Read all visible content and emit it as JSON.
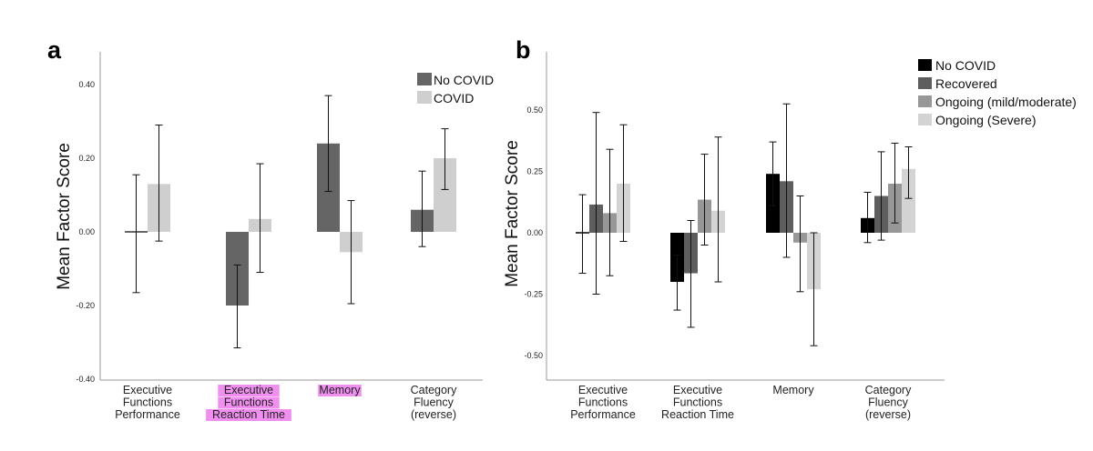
{
  "chart_data": [
    {
      "panel_label": "a",
      "type": "bar",
      "ylabel": "Mean Factor Score",
      "ylim": [
        -0.4,
        0.5
      ],
      "yticks": [
        "0.40",
        "0.20",
        "0.00",
        "-0.20",
        "-0.40"
      ],
      "ytick_values": [
        0.4,
        0.2,
        0.0,
        -0.2,
        -0.4
      ],
      "categories": [
        [
          "Executive",
          "Functions",
          "Performance"
        ],
        [
          "Executive",
          "Functions",
          "Reaction Time"
        ],
        [
          "Memory"
        ],
        [
          "Category",
          "Fluency",
          "(reverse)"
        ]
      ],
      "highlighted_categories": [
        1,
        2
      ],
      "highlight_color": "#f08ff0",
      "legend_position": "top-right",
      "series": [
        {
          "name": "No COVID",
          "color": "#656565",
          "values": [
            0.0,
            -0.2,
            0.24,
            0.06
          ],
          "err_low": [
            -0.165,
            -0.315,
            0.11,
            -0.04
          ],
          "err_high": [
            0.155,
            -0.09,
            0.37,
            0.165
          ]
        },
        {
          "name": "COVID",
          "color": "#cfcfcf",
          "values": [
            0.13,
            0.035,
            -0.055,
            0.2
          ],
          "err_low": [
            -0.025,
            -0.11,
            -0.195,
            0.115
          ],
          "err_high": [
            0.29,
            0.185,
            0.085,
            0.28
          ]
        }
      ]
    },
    {
      "panel_label": "b",
      "type": "bar",
      "ylabel": "Mean Factor Score",
      "ylim": [
        -0.55,
        0.65
      ],
      "yticks": [
        "0.50",
        "0.25",
        "0.00",
        "-0.25",
        "-0.50"
      ],
      "ytick_values": [
        0.5,
        0.25,
        0.0,
        -0.25,
        -0.5
      ],
      "categories": [
        [
          "Executive",
          "Functions",
          "Performance"
        ],
        [
          "Executive",
          "Functions",
          "Reaction Time"
        ],
        [
          "Memory"
        ],
        [
          "Category",
          "Fluency",
          "(reverse)"
        ]
      ],
      "legend_position": "top-right",
      "series": [
        {
          "name": "No COVID",
          "color": "#000000",
          "values": [
            0.0,
            -0.2,
            0.24,
            0.06
          ],
          "err_low": [
            -0.165,
            -0.315,
            0.11,
            -0.04
          ],
          "err_high": [
            0.155,
            -0.09,
            0.37,
            0.165
          ]
        },
        {
          "name": "Recovered",
          "color": "#5e5e5e",
          "values": [
            0.115,
            -0.165,
            0.21,
            0.15
          ],
          "err_low": [
            -0.25,
            -0.385,
            -0.1,
            -0.03
          ],
          "err_high": [
            0.49,
            0.05,
            0.525,
            0.33
          ]
        },
        {
          "name": "Ongoing (mild/moderate)",
          "color": "#979797",
          "values": [
            0.08,
            0.135,
            -0.04,
            0.2
          ],
          "err_low": [
            -0.175,
            -0.05,
            -0.24,
            0.04
          ],
          "err_high": [
            0.34,
            0.32,
            0.15,
            0.365
          ]
        },
        {
          "name": "Ongoing (Severe)",
          "color": "#d3d3d3",
          "values": [
            0.2,
            0.09,
            -0.23,
            0.26
          ],
          "err_low": [
            -0.035,
            -0.2,
            -0.46,
            0.14
          ],
          "err_high": [
            0.44,
            0.39,
            0.0,
            0.35
          ]
        }
      ]
    }
  ]
}
